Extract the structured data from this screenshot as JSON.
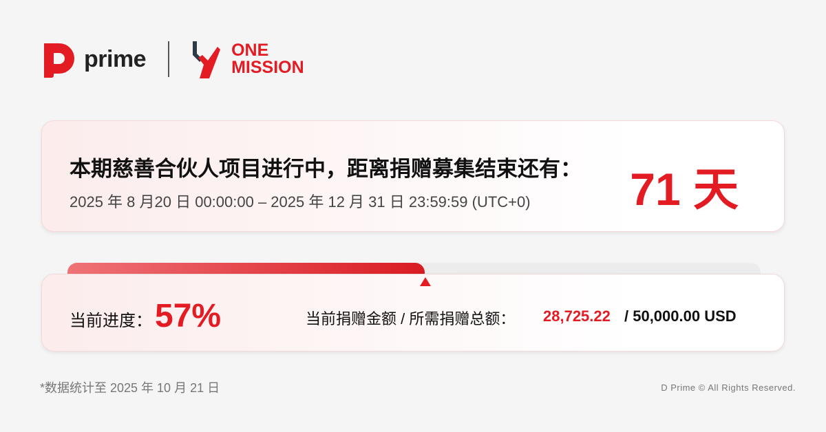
{
  "logos": {
    "prime": "prime",
    "one_mission": [
      "ONE",
      "MISSION"
    ]
  },
  "colors": {
    "accent": "#e31b23",
    "background": "#f5f5f5"
  },
  "countdown": {
    "title": "本期慈善合伙人项目进行中，距离捐赠募集结束还有：",
    "dates": "2025 年 8 月20 日 00:00:00 – 2025 年 12 月 31 日 23:59:59 (UTC+0)",
    "days": "71 天"
  },
  "progress": {
    "percent": 57,
    "label": "当前进度：",
    "value": "57%",
    "amount_label": "当前捐赠金额 / 所需捐赠总额：",
    "current": "28,725.22",
    "total": "/ 50,000.00 USD"
  },
  "footer": {
    "note": "*数据统计至 2025 年 10 月 21 日",
    "copyright": "D Prime © All Rights Reserved."
  }
}
